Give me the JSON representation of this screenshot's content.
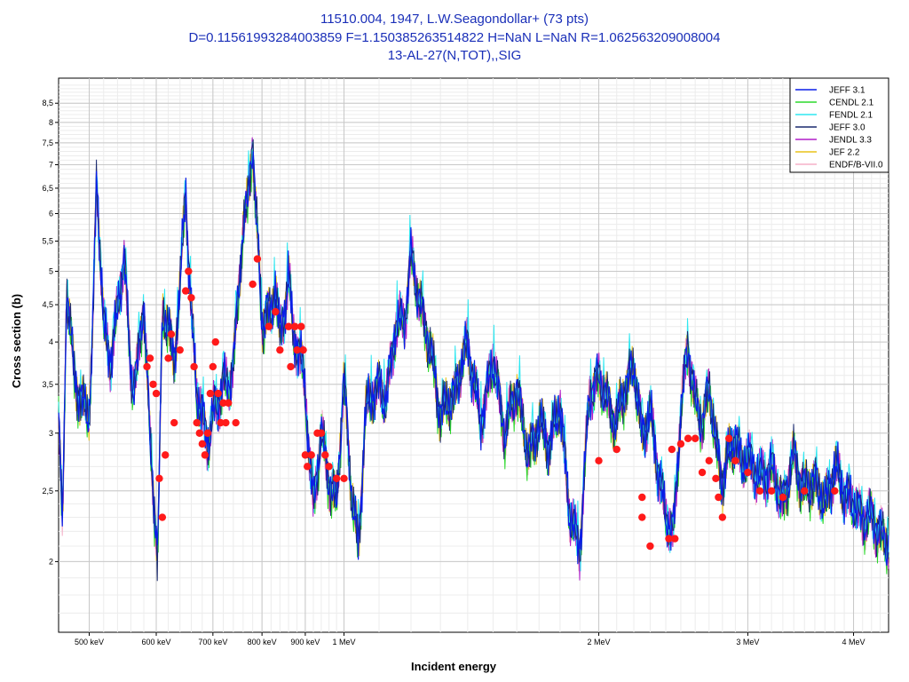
{
  "chart_data": {
    "type": "line",
    "title_lines": [
      "11510.004, 1947, L.W.Seagondollar+ (73 pts)",
      "D=0.11561993284003859 F=1.150385263514822 H=NaN L=NaN R=1.062563209008004",
      "13-AL-27(N,TOT),,SIG"
    ],
    "xlabel": "Incident energy",
    "ylabel": "Cross section (b)",
    "x_scale": "log",
    "y_scale": "log",
    "x_unit": "MeV",
    "xlim": [
      0.46,
      4.4
    ],
    "ylim": [
      1.6,
      9.2
    ],
    "grid": true,
    "legend_position": "top-right",
    "x_ticks": [
      {
        "value": 0.5,
        "label": "500 keV"
      },
      {
        "value": 0.6,
        "label": "600 keV"
      },
      {
        "value": 0.7,
        "label": "700 keV"
      },
      {
        "value": 0.8,
        "label": "800 keV"
      },
      {
        "value": 0.9,
        "label": "900 keV"
      },
      {
        "value": 1.0,
        "label": "1 MeV"
      },
      {
        "value": 2.0,
        "label": "2 MeV"
      },
      {
        "value": 3.0,
        "label": "3 MeV"
      },
      {
        "value": 4.0,
        "label": "4 MeV"
      }
    ],
    "y_ticks": [
      {
        "value": 2,
        "label": "2"
      },
      {
        "value": 2.5,
        "label": "2,5"
      },
      {
        "value": 3,
        "label": "3"
      },
      {
        "value": 3.5,
        "label": "3,5"
      },
      {
        "value": 4,
        "label": "4"
      },
      {
        "value": 4.5,
        "label": "4,5"
      },
      {
        "value": 5,
        "label": "5"
      },
      {
        "value": 5.5,
        "label": "5,5"
      },
      {
        "value": 6,
        "label": "6"
      },
      {
        "value": 6.5,
        "label": "6,5"
      },
      {
        "value": 7,
        "label": "7"
      },
      {
        "value": 7.5,
        "label": "7,5"
      },
      {
        "value": 8,
        "label": "8"
      },
      {
        "value": 8.5,
        "label": "8,5"
      }
    ],
    "curve_base": {
      "x": [
        0.46,
        0.465,
        0.47,
        0.48,
        0.49,
        0.5,
        0.505,
        0.51,
        0.52,
        0.53,
        0.54,
        0.55,
        0.56,
        0.565,
        0.57,
        0.58,
        0.59,
        0.6,
        0.602,
        0.605,
        0.61,
        0.62,
        0.63,
        0.64,
        0.65,
        0.655,
        0.66,
        0.67,
        0.68,
        0.69,
        0.7,
        0.71,
        0.72,
        0.73,
        0.74,
        0.75,
        0.76,
        0.77,
        0.78,
        0.785,
        0.79,
        0.8,
        0.81,
        0.82,
        0.83,
        0.84,
        0.85,
        0.86,
        0.87,
        0.88,
        0.89,
        0.9,
        0.91,
        0.92,
        0.94,
        0.96,
        0.98,
        1.0,
        1.02,
        1.04,
        1.06,
        1.08,
        1.1,
        1.12,
        1.15,
        1.18,
        1.2,
        1.22,
        1.25,
        1.28,
        1.3,
        1.35,
        1.4,
        1.45,
        1.5,
        1.55,
        1.6,
        1.65,
        1.7,
        1.75,
        1.8,
        1.85,
        1.9,
        1.95,
        2.0,
        2.05,
        2.1,
        2.15,
        2.2,
        2.25,
        2.3,
        2.35,
        2.4,
        2.45,
        2.5,
        2.55,
        2.6,
        2.65,
        2.7,
        2.75,
        2.8,
        2.85,
        2.9,
        2.95,
        3.0,
        3.1,
        3.2,
        3.3,
        3.4,
        3.5,
        3.6,
        3.7,
        3.8,
        3.9,
        4.0,
        4.1,
        4.2,
        4.3,
        4.4
      ],
      "y": [
        3.2,
        2.2,
        4.8,
        3.6,
        3.3,
        3.2,
        4.2,
        6.8,
        4.2,
        3.8,
        4.4,
        5.3,
        3.6,
        3.5,
        3.7,
        4.6,
        2.9,
        2.2,
        2.0,
        2.6,
        4.4,
        4.2,
        3.8,
        4.7,
        6.6,
        5.2,
        4.4,
        3.4,
        3.2,
        2.9,
        3.2,
        3.3,
        3.6,
        3.4,
        3.8,
        4.6,
        5.8,
        6.2,
        7.7,
        6.4,
        5.6,
        4.2,
        4.5,
        4.3,
        4.8,
        4.1,
        4.4,
        5.0,
        4.1,
        4.0,
        3.8,
        3.4,
        2.8,
        2.4,
        3.0,
        2.6,
        2.4,
        3.6,
        2.5,
        2.1,
        3.2,
        3.4,
        3.5,
        3.3,
        4.2,
        4.3,
        5.3,
        4.7,
        4.2,
        3.6,
        3.2,
        3.4,
        4.0,
        3.1,
        3.8,
        3.0,
        3.5,
        2.8,
        3.1,
        2.9,
        3.3,
        2.3,
        2.1,
        3.4,
        3.6,
        3.3,
        3.1,
        3.5,
        3.7,
        3.0,
        3.2,
        2.7,
        2.3,
        2.2,
        3.2,
        4.0,
        3.3,
        3.1,
        3.5,
        2.9,
        2.6,
        2.8,
        3.0,
        2.7,
        2.8,
        2.6,
        2.7,
        2.4,
        2.8,
        2.5,
        2.6,
        2.4,
        2.7,
        2.5,
        2.4,
        2.3,
        2.3,
        2.2,
        2.1
      ]
    },
    "series": [
      {
        "name": "JEFF 3.1",
        "color": "#0a1ee8"
      },
      {
        "name": "CENDL 2.1",
        "color": "#2bd82b"
      },
      {
        "name": "FENDL 2.1",
        "color": "#2ee7f0"
      },
      {
        "name": "JEFF 3.0",
        "color": "#1a2a6e"
      },
      {
        "name": "JENDL 3.3",
        "color": "#b01fc8"
      },
      {
        "name": "JEF 2.2",
        "color": "#e8c21a"
      },
      {
        "name": "ENDF/B-VII.0",
        "color": "#f5b0c8"
      }
    ],
    "experimental": {
      "name": "11510.004, 1947, L.W.Seagondollar+",
      "color": "#ff1a1a",
      "x": [
        0.585,
        0.59,
        0.595,
        0.6,
        0.605,
        0.61,
        0.615,
        0.62,
        0.625,
        0.63,
        0.64,
        0.65,
        0.655,
        0.66,
        0.665,
        0.67,
        0.675,
        0.68,
        0.685,
        0.69,
        0.695,
        0.7,
        0.705,
        0.71,
        0.715,
        0.72,
        0.725,
        0.73,
        0.745,
        0.78,
        0.79,
        0.815,
        0.83,
        0.84,
        0.86,
        0.865,
        0.875,
        0.88,
        0.89,
        0.895,
        0.9,
        0.905,
        0.915,
        0.93,
        0.94,
        0.95,
        0.96,
        0.98,
        1.0,
        2.0,
        2.1,
        2.25,
        2.25,
        2.3,
        2.42,
        2.44,
        2.46,
        2.5,
        2.55,
        2.6,
        2.65,
        2.7,
        2.75,
        2.77,
        2.8,
        2.85,
        2.9,
        3.0,
        3.1,
        3.2,
        3.3,
        3.5,
        3.8
      ],
      "y": [
        3.7,
        3.8,
        3.5,
        3.4,
        2.6,
        2.3,
        2.8,
        3.8,
        4.1,
        3.1,
        3.9,
        4.7,
        5.0,
        4.6,
        3.7,
        3.1,
        3.0,
        2.9,
        2.8,
        3.0,
        3.4,
        3.7,
        4.0,
        3.4,
        3.1,
        3.3,
        3.1,
        3.3,
        3.1,
        4.8,
        5.2,
        4.2,
        4.4,
        3.9,
        4.2,
        3.7,
        4.2,
        3.9,
        4.2,
        3.9,
        2.8,
        2.7,
        2.8,
        3.0,
        3.0,
        2.8,
        2.7,
        2.6,
        2.6,
        2.75,
        2.85,
        2.45,
        2.3,
        2.1,
        2.15,
        2.85,
        2.15,
        2.9,
        2.95,
        2.95,
        2.65,
        2.75,
        2.6,
        2.45,
        2.3,
        2.95,
        2.75,
        2.65,
        2.5,
        2.5,
        2.45,
        2.5,
        2.5
      ]
    }
  }
}
